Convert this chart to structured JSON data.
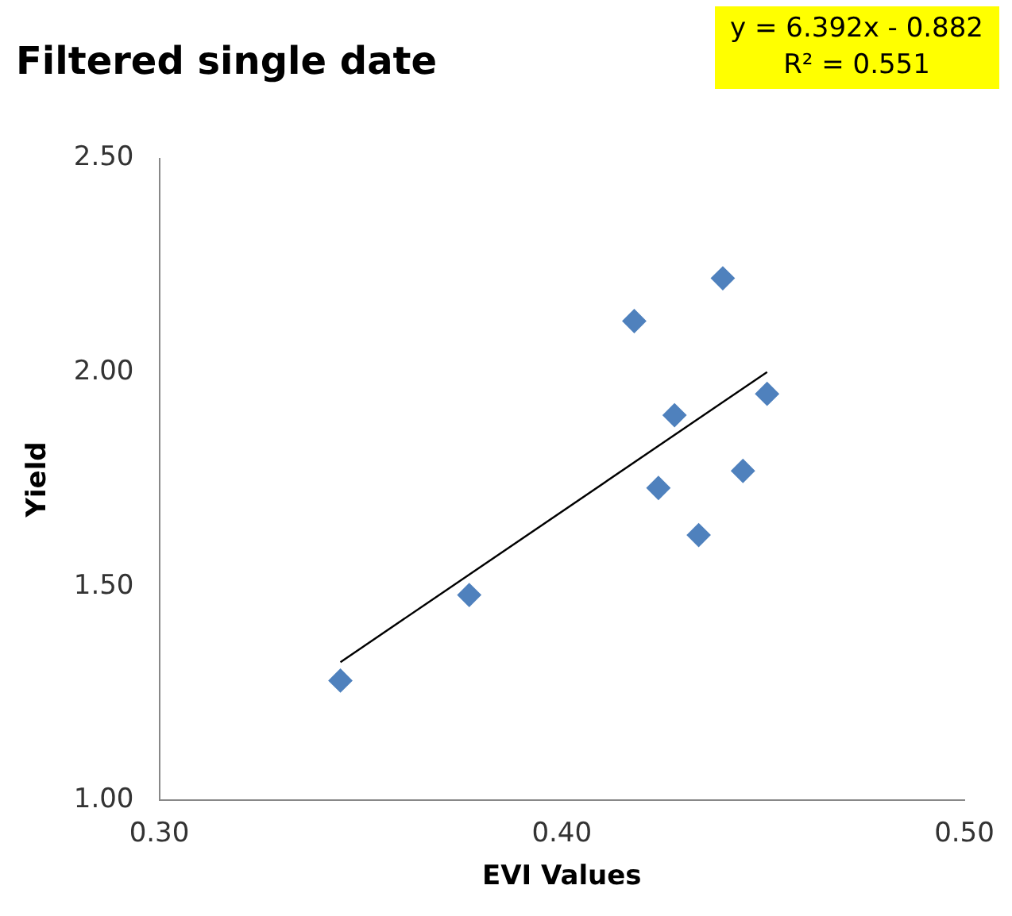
{
  "chart_data": {
    "type": "scatter",
    "title": "Filtered single date",
    "xlabel": "EVI Values",
    "ylabel": "Yield",
    "annotations": [
      "y = 6.392x - 0.882",
      "R² = 0.551"
    ],
    "xlim": [
      0.3,
      0.5
    ],
    "xticks": [
      {
        "value": 0.3,
        "label": "0.30"
      },
      {
        "value": 0.4,
        "label": "0.40"
      },
      {
        "value": 0.5,
        "label": "0.50"
      }
    ],
    "ylim": [
      1,
      2.5
    ],
    "yticks": [
      {
        "value": 1,
        "label": "1.00"
      },
      {
        "value": 1.5,
        "label": "1.50"
      },
      {
        "value": 2,
        "label": "2.00"
      },
      {
        "value": 2.5,
        "label": "2.50"
      }
    ],
    "grid": false,
    "legend": false,
    "series": [
      {
        "marker": "diamond",
        "color": "#4f81bd",
        "x": [
          0.345,
          0.377,
          0.418,
          0.44,
          0.428,
          0.424,
          0.434,
          0.445,
          0.451
        ],
        "values": [
          1.28,
          1.48,
          2.12,
          2.22,
          1.9,
          1.73,
          1.62,
          1.77,
          1.95
        ]
      },
      {
        "type": "line",
        "color": "#000000",
        "x": [
          0.345,
          0.451
        ],
        "values": [
          1.323,
          2.001
        ]
      }
    ]
  }
}
